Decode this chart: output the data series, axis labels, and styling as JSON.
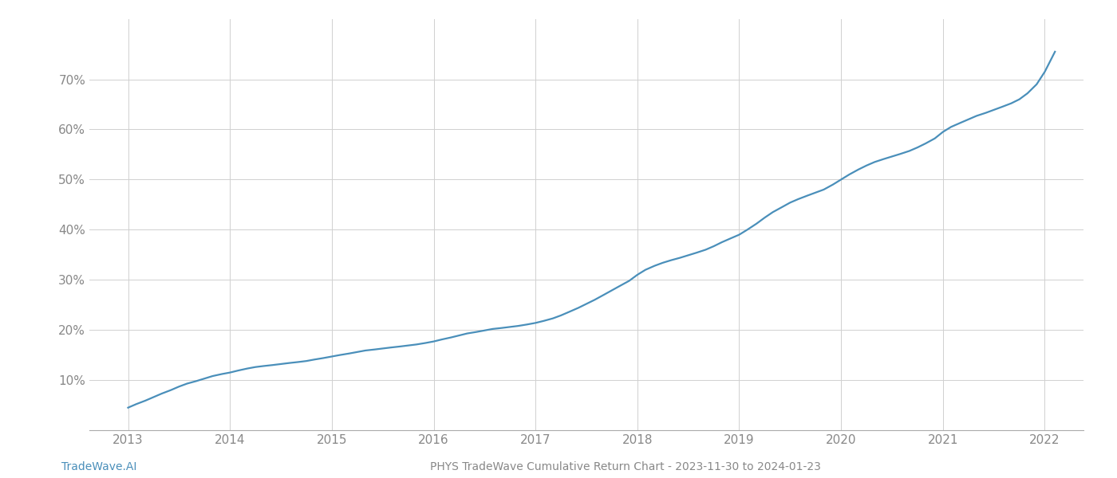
{
  "title": "PHYS TradeWave Cumulative Return Chart - 2023-11-30 to 2024-01-23",
  "watermark": "TradeWave.AI",
  "line_color": "#4a8fba",
  "background_color": "#ffffff",
  "grid_color": "#d0d0d0",
  "x_years": [
    2013,
    2014,
    2015,
    2016,
    2017,
    2018,
    2019,
    2020,
    2021,
    2022
  ],
  "data_x": [
    2013.0,
    2013.08,
    2013.17,
    2013.25,
    2013.33,
    2013.42,
    2013.5,
    2013.58,
    2013.67,
    2013.75,
    2013.83,
    2013.92,
    2014.0,
    2014.08,
    2014.17,
    2014.25,
    2014.33,
    2014.42,
    2014.5,
    2014.58,
    2014.67,
    2014.75,
    2014.83,
    2014.92,
    2015.0,
    2015.08,
    2015.17,
    2015.25,
    2015.33,
    2015.42,
    2015.5,
    2015.58,
    2015.67,
    2015.75,
    2015.83,
    2015.92,
    2016.0,
    2016.08,
    2016.17,
    2016.25,
    2016.33,
    2016.42,
    2016.5,
    2016.58,
    2016.67,
    2016.75,
    2016.83,
    2016.92,
    2017.0,
    2017.08,
    2017.17,
    2017.25,
    2017.33,
    2017.42,
    2017.5,
    2017.58,
    2017.67,
    2017.75,
    2017.83,
    2017.92,
    2018.0,
    2018.08,
    2018.17,
    2018.25,
    2018.33,
    2018.42,
    2018.5,
    2018.58,
    2018.67,
    2018.75,
    2018.83,
    2018.92,
    2019.0,
    2019.08,
    2019.17,
    2019.25,
    2019.33,
    2019.42,
    2019.5,
    2019.58,
    2019.67,
    2019.75,
    2019.83,
    2019.92,
    2020.0,
    2020.08,
    2020.17,
    2020.25,
    2020.33,
    2020.42,
    2020.5,
    2020.58,
    2020.67,
    2020.75,
    2020.83,
    2020.92,
    2021.0,
    2021.08,
    2021.17,
    2021.25,
    2021.33,
    2021.42,
    2021.5,
    2021.58,
    2021.67,
    2021.75,
    2021.83,
    2021.92,
    2022.0,
    2022.05,
    2022.1
  ],
  "data_y": [
    4.5,
    5.2,
    5.9,
    6.6,
    7.3,
    8.0,
    8.7,
    9.3,
    9.8,
    10.3,
    10.8,
    11.2,
    11.5,
    11.9,
    12.3,
    12.6,
    12.8,
    13.0,
    13.2,
    13.4,
    13.6,
    13.8,
    14.1,
    14.4,
    14.7,
    15.0,
    15.3,
    15.6,
    15.9,
    16.1,
    16.3,
    16.5,
    16.7,
    16.9,
    17.1,
    17.4,
    17.7,
    18.1,
    18.5,
    18.9,
    19.3,
    19.6,
    19.9,
    20.2,
    20.4,
    20.6,
    20.8,
    21.1,
    21.4,
    21.8,
    22.3,
    22.9,
    23.6,
    24.4,
    25.2,
    26.0,
    27.0,
    27.9,
    28.8,
    29.8,
    31.0,
    32.0,
    32.8,
    33.4,
    33.9,
    34.4,
    34.9,
    35.4,
    36.0,
    36.7,
    37.5,
    38.3,
    39.0,
    40.0,
    41.2,
    42.4,
    43.5,
    44.5,
    45.4,
    46.1,
    46.8,
    47.4,
    48.0,
    49.0,
    50.0,
    51.0,
    52.0,
    52.8,
    53.5,
    54.1,
    54.6,
    55.1,
    55.7,
    56.4,
    57.2,
    58.2,
    59.5,
    60.5,
    61.3,
    62.0,
    62.7,
    63.3,
    63.9,
    64.5,
    65.2,
    66.0,
    67.2,
    69.0,
    71.5,
    73.5,
    75.5
  ],
  "ylim": [
    0,
    82
  ],
  "xlim": [
    2012.62,
    2022.38
  ],
  "yticks": [
    10,
    20,
    30,
    40,
    50,
    60,
    70
  ],
  "title_fontsize": 10,
  "watermark_fontsize": 10,
  "tick_fontsize": 11,
  "tick_label_color": "#888888",
  "line_width": 1.6
}
